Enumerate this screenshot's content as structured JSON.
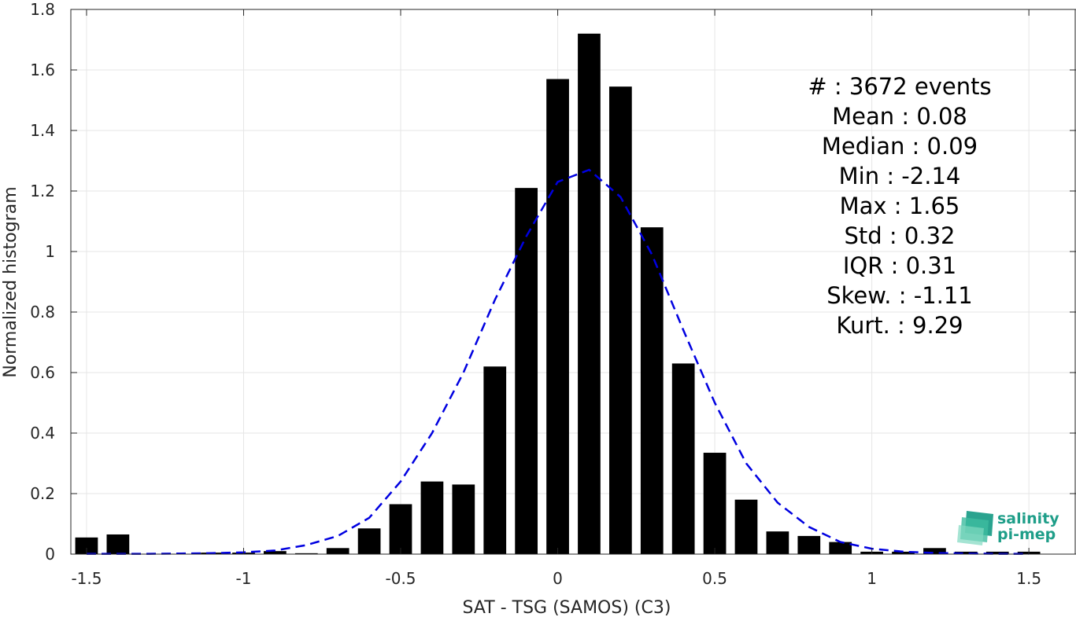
{
  "chart_data": {
    "type": "bar",
    "xlabel": "SAT - TSG (SAMOS) (C3)",
    "ylabel": "Normalized histogram",
    "xlim": [
      -1.55,
      1.65
    ],
    "ylim": [
      0,
      1.8
    ],
    "grid": true,
    "xticks": [
      -1.5,
      -1,
      -0.5,
      0,
      0.5,
      1,
      1.5
    ],
    "xtick_labels": [
      "-1.5",
      "-1",
      "-0.5",
      "0",
      "0.5",
      "1",
      "1.5"
    ],
    "yticks": [
      0,
      0.2,
      0.4,
      0.6,
      0.8,
      1,
      1.2,
      1.4,
      1.6,
      1.8
    ],
    "ytick_labels": [
      "0",
      "0.2",
      "0.4",
      "0.6",
      "0.8",
      "1",
      "1.2",
      "1.4",
      "1.6",
      "1.8"
    ],
    "bin_width": 0.1,
    "bars": {
      "x": [
        -1.5,
        -1.4,
        -1.3,
        -1.2,
        -1.1,
        -1.0,
        -0.9,
        -0.8,
        -0.7,
        -0.6,
        -0.5,
        -0.4,
        -0.3,
        -0.2,
        -0.1,
        0.0,
        0.1,
        0.2,
        0.3,
        0.4,
        0.5,
        0.6,
        0.7,
        0.8,
        0.9,
        1.0,
        1.1,
        1.2,
        1.3,
        1.4,
        1.5
      ],
      "values": [
        0.055,
        0.065,
        0.0,
        0.0,
        0.005,
        0.005,
        0.01,
        0.003,
        0.02,
        0.085,
        0.165,
        0.24,
        0.23,
        0.62,
        1.21,
        1.57,
        1.72,
        1.545,
        1.08,
        0.63,
        0.335,
        0.18,
        0.075,
        0.06,
        0.04,
        0.008,
        0.008,
        0.02,
        0.008,
        0.008,
        0.008
      ],
      "color": "#000000"
    },
    "fit_curve": {
      "style": "dashed",
      "color": "#0000e0",
      "x": [
        -1.5,
        -1.4,
        -1.3,
        -1.2,
        -1.1,
        -1.0,
        -0.9,
        -0.8,
        -0.7,
        -0.6,
        -0.5,
        -0.4,
        -0.3,
        -0.2,
        -0.1,
        0.0,
        0.1,
        0.2,
        0.3,
        0.4,
        0.5,
        0.6,
        0.7,
        0.8,
        0.9,
        1.0,
        1.1,
        1.2,
        1.3,
        1.4,
        1.5
      ],
      "y": [
        0.001,
        0.001,
        0.001,
        0.002,
        0.003,
        0.006,
        0.012,
        0.03,
        0.06,
        0.12,
        0.24,
        0.4,
        0.6,
        0.84,
        1.05,
        1.23,
        1.27,
        1.18,
        0.99,
        0.74,
        0.5,
        0.3,
        0.17,
        0.09,
        0.04,
        0.018,
        0.008,
        0.004,
        0.002,
        0.001,
        0.001
      ]
    },
    "annotations": [
      "#  : 3672 events",
      "Mean : 0.08",
      "Median : 0.09",
      "Min : -2.14",
      "Max : 1.65",
      "Std : 0.32",
      "IQR : 0.31",
      "Skew. : -1.11",
      "Kurt. : 9.29"
    ]
  },
  "logo": {
    "line1": "salinity",
    "line2": "pi-mep",
    "color": "#1f9e89"
  }
}
